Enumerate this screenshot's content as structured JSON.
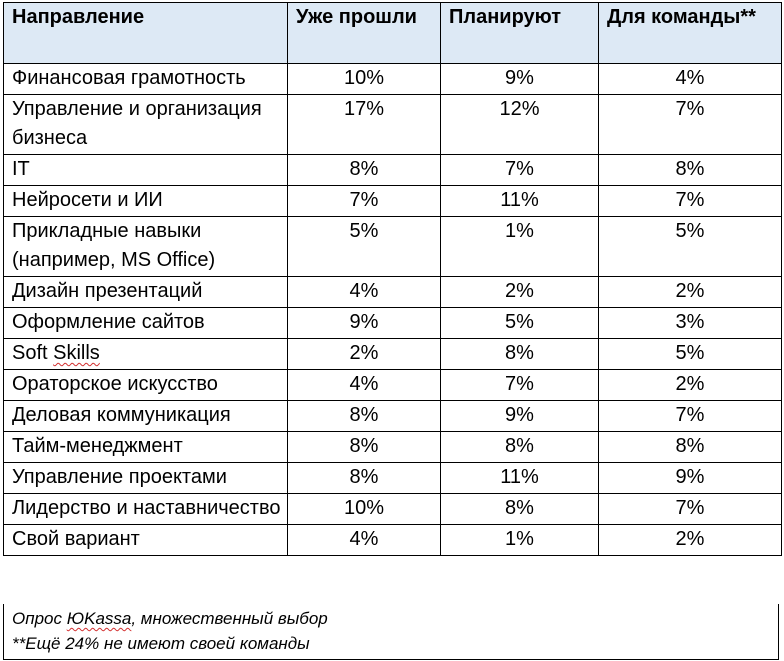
{
  "table": {
    "headers": [
      "Направление",
      "Уже прошли",
      "Планируют",
      "Для команды**"
    ],
    "rows": [
      {
        "direction": "Финансовая грамотность",
        "done": "10%",
        "planned": "9%",
        "team": "4%"
      },
      {
        "direction": "Управление и организация бизнеса",
        "done": "17%",
        "planned": "12%",
        "team": "7%"
      },
      {
        "direction": "IT",
        "done": "8%",
        "planned": "7%",
        "team": "8%"
      },
      {
        "direction": "Нейросети и ИИ",
        "done": "7%",
        "planned": "11%",
        "team": "7%"
      },
      {
        "direction": "Прикладные навыки (например, MS Office)",
        "done": "5%",
        "planned": "1%",
        "team": "5%"
      },
      {
        "direction": "Дизайн презентаций",
        "done": "4%",
        "planned": "2%",
        "team": "2%"
      },
      {
        "direction": "Оформление сайтов",
        "done": "9%",
        "planned": "5%",
        "team": "3%"
      },
      {
        "direction": "Soft Skills",
        "done": "2%",
        "planned": "8%",
        "team": "5%"
      },
      {
        "direction": "Ораторское искусство",
        "done": "4%",
        "planned": "7%",
        "team": "2%"
      },
      {
        "direction": "Деловая коммуникация",
        "done": "8%",
        "planned": "9%",
        "team": "7%"
      },
      {
        "direction": "Тайм-менеджмент",
        "done": "8%",
        "planned": "8%",
        "team": "8%"
      },
      {
        "direction": "Управление проектами",
        "done": "8%",
        "planned": "11%",
        "team": "9%"
      },
      {
        "direction": "Лидерство и наставничество",
        "done": "10%",
        "planned": "8%",
        "team": "7%"
      },
      {
        "direction": "Свой вариант",
        "done": "4%",
        "planned": "1%",
        "team": "2%"
      }
    ]
  },
  "footnotes": {
    "source": "Опрос ЮKassa, множественный выбор",
    "note": "**Ещё 24% не имеют своей команды"
  },
  "colors": {
    "header_background": "#dde9f5",
    "border": "#000000",
    "spellcheck_underline": "#d32f2f"
  }
}
